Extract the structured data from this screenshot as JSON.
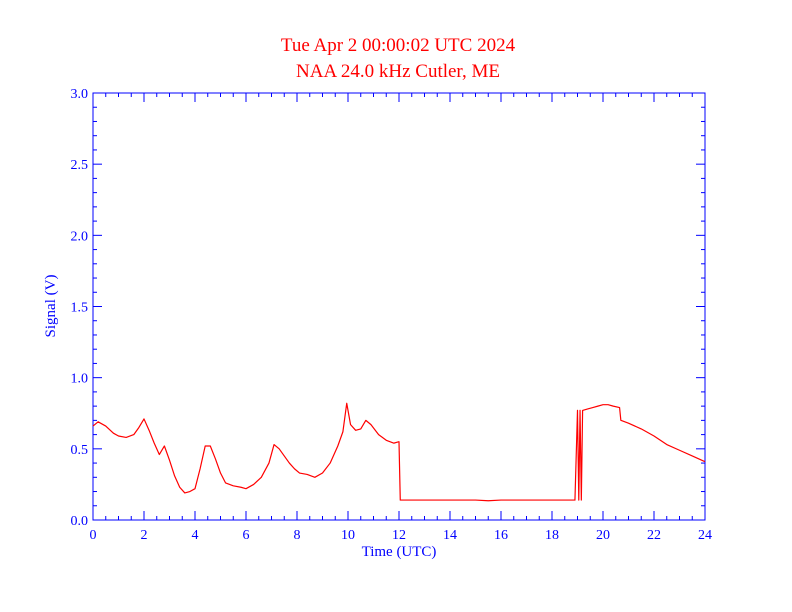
{
  "chart_data": {
    "type": "line",
    "title": "Tue Apr 2 00:00:02 UTC 2024",
    "subtitle": "NAA 24.0 kHz Cutler, ME",
    "xlabel": "Time (UTC)",
    "ylabel": "Signal (V)",
    "xlim": [
      0,
      24
    ],
    "ylim": [
      0,
      3.0
    ],
    "xticks": [
      "0",
      "2",
      "4",
      "6",
      "8",
      "10",
      "12",
      "14",
      "16",
      "18",
      "20",
      "22",
      "24"
    ],
    "yticks": [
      "0.0",
      "0.5",
      "1.0",
      "1.5",
      "2.0",
      "2.5",
      "3.0"
    ],
    "grid": false,
    "colors": {
      "series": "#ff0000",
      "axes": "#0000ff",
      "title": "#ff0000"
    },
    "series": [
      {
        "x": [
          0,
          0.2,
          0.5,
          0.8,
          1.0,
          1.3,
          1.6,
          1.8,
          2.0,
          2.2,
          2.4,
          2.6,
          2.8,
          3.0,
          3.2,
          3.4,
          3.6,
          3.8,
          4.0,
          4.2,
          4.4,
          4.6,
          4.8,
          5.0,
          5.2,
          5.5,
          5.8,
          6.0,
          6.3,
          6.6,
          6.9,
          7.1,
          7.3,
          7.5,
          7.7,
          7.9,
          8.1,
          8.4,
          8.7,
          9.0,
          9.3,
          9.6,
          9.8,
          9.95,
          10.1,
          10.3,
          10.5,
          10.7,
          10.9,
          11.2,
          11.5,
          11.8,
          12.0,
          12.05,
          12.1,
          13,
          14,
          15,
          15.5,
          16,
          17,
          18,
          18.9,
          19.0,
          19.05,
          19.1,
          19.15,
          19.2,
          19.4,
          19.6,
          19.8,
          20.0,
          20.2,
          20.4,
          20.65,
          20.7,
          21.0,
          21.5,
          22.0,
          22.5,
          23.0,
          23.5,
          24.0
        ],
        "y": [
          0.66,
          0.69,
          0.66,
          0.61,
          0.59,
          0.58,
          0.6,
          0.65,
          0.71,
          0.63,
          0.54,
          0.46,
          0.52,
          0.42,
          0.31,
          0.23,
          0.19,
          0.2,
          0.22,
          0.36,
          0.52,
          0.52,
          0.43,
          0.33,
          0.26,
          0.24,
          0.23,
          0.22,
          0.25,
          0.3,
          0.4,
          0.53,
          0.5,
          0.45,
          0.4,
          0.36,
          0.33,
          0.32,
          0.3,
          0.33,
          0.4,
          0.52,
          0.62,
          0.82,
          0.67,
          0.63,
          0.64,
          0.7,
          0.67,
          0.6,
          0.56,
          0.54,
          0.55,
          0.14,
          0.14,
          0.14,
          0.14,
          0.14,
          0.135,
          0.14,
          0.14,
          0.14,
          0.14,
          0.77,
          0.14,
          0.77,
          0.14,
          0.77,
          0.78,
          0.79,
          0.8,
          0.81,
          0.81,
          0.8,
          0.79,
          0.7,
          0.68,
          0.64,
          0.59,
          0.53,
          0.49,
          0.45,
          0.41
        ]
      }
    ]
  }
}
